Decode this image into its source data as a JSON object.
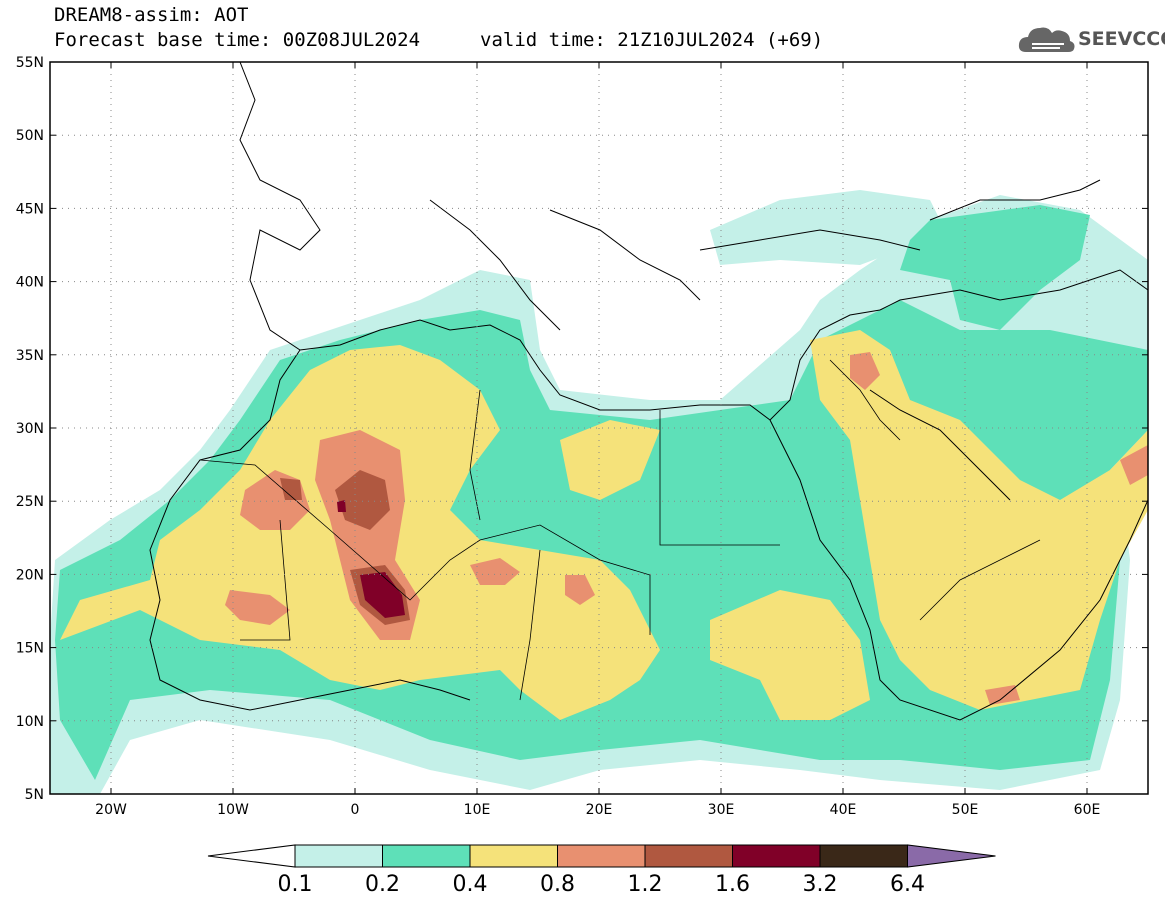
{
  "header": {
    "title": "DREAM8-assim: AOT",
    "base_time": "Forecast base time: 00Z08JUL2024",
    "valid_time": "valid time: 21Z10JUL2024 (+69)"
  },
  "logo": {
    "text": "SEEVCCC",
    "icon": "cloud-icon"
  },
  "map": {
    "lat_labels": [
      "55N",
      "50N",
      "45N",
      "40N",
      "35N",
      "30N",
      "25N",
      "20N",
      "15N",
      "10N",
      "5N"
    ],
    "lon_labels": [
      "20W",
      "10W",
      "0",
      "10E",
      "20E",
      "30E",
      "40E",
      "50E",
      "60E"
    ],
    "lat_range": [
      5,
      55
    ],
    "lon_range": [
      -25,
      65
    ],
    "grid": "dotted"
  },
  "colorbar": {
    "levels": [
      "0.1",
      "0.2",
      "0.4",
      "0.8",
      "1.2",
      "1.6",
      "3.2",
      "6.4"
    ],
    "colors": [
      "#c4f0e8",
      "#5ee0b8",
      "#f5e27a",
      "#e89070",
      "#b05840",
      "#800028",
      "#3a2818",
      "#8a6aa8"
    ],
    "extend": "both"
  }
}
